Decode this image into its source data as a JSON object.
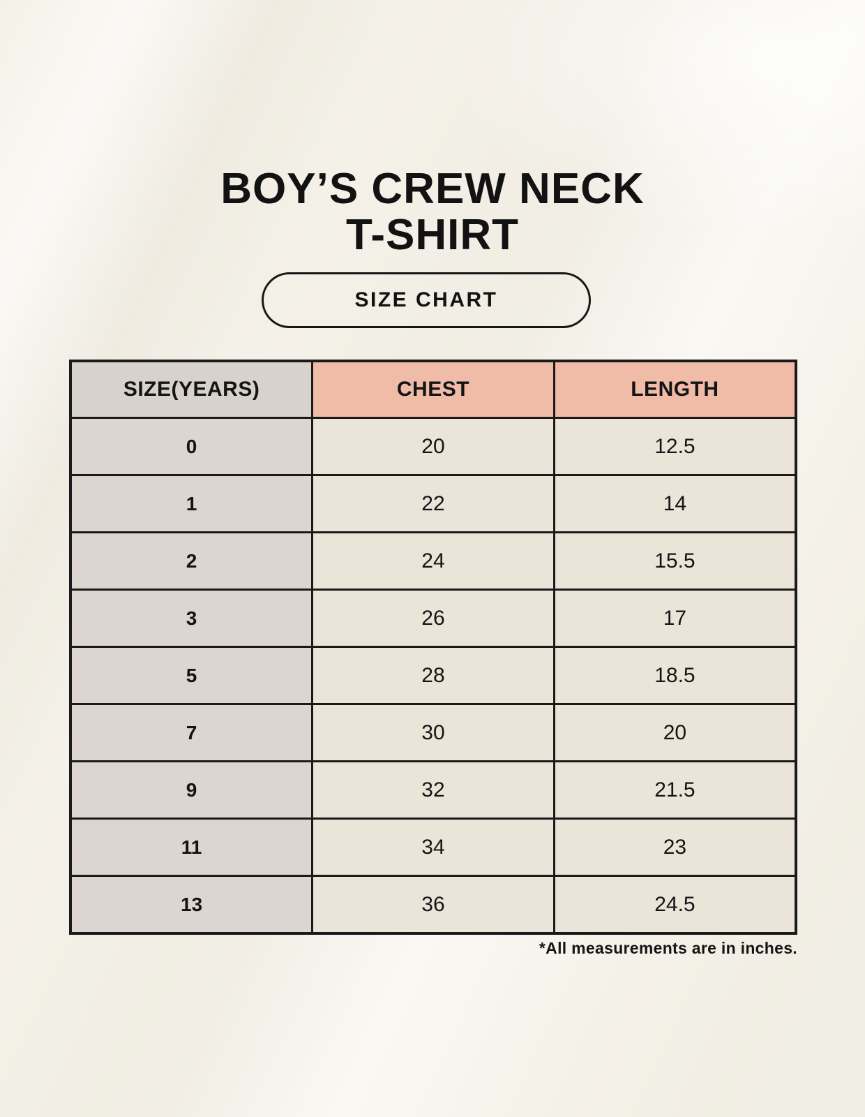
{
  "page": {
    "title_line1": "BOY’S CREW NECK",
    "title_line2": "T-SHIRT",
    "badge_label": "SIZE CHART",
    "footnote": "*All measurements are in inches."
  },
  "colors": {
    "background": "#f4f1e8",
    "header_accent": "#f0bba7",
    "header_neutral": "#d8d2cc",
    "row_label_bg": "#ddd6d0",
    "row_value_bg": "#ebe4d8",
    "border": "#1a1a1a",
    "text": "#141414"
  },
  "table": {
    "columns": [
      "SIZE(YEARS)",
      "CHEST",
      "LENGTH"
    ],
    "rows": [
      {
        "size": "0",
        "chest": "20",
        "length": "12.5"
      },
      {
        "size": "1",
        "chest": "22",
        "length": "14"
      },
      {
        "size": "2",
        "chest": "24",
        "length": "15.5"
      },
      {
        "size": "3",
        "chest": "26",
        "length": "17"
      },
      {
        "size": "5",
        "chest": "28",
        "length": "18.5"
      },
      {
        "size": "7",
        "chest": "30",
        "length": "20"
      },
      {
        "size": "9",
        "chest": "32",
        "length": "21.5"
      },
      {
        "size": "11",
        "chest": "34",
        "length": "23"
      },
      {
        "size": "13",
        "chest": "36",
        "length": "24.5"
      }
    ]
  },
  "chart_data": {
    "type": "table",
    "title": "BOY’S CREW NECK T-SHIRT — SIZE CHART",
    "columns": [
      "SIZE(YEARS)",
      "CHEST",
      "LENGTH"
    ],
    "rows": [
      [
        "0",
        20,
        12.5
      ],
      [
        "1",
        22,
        14
      ],
      [
        "2",
        24,
        15.5
      ],
      [
        "3",
        26,
        17
      ],
      [
        "5",
        28,
        18.5
      ],
      [
        "7",
        30,
        20
      ],
      [
        "9",
        32,
        21.5
      ],
      [
        "11",
        34,
        23
      ],
      [
        "13",
        36,
        24.5
      ]
    ],
    "units": "inches"
  }
}
